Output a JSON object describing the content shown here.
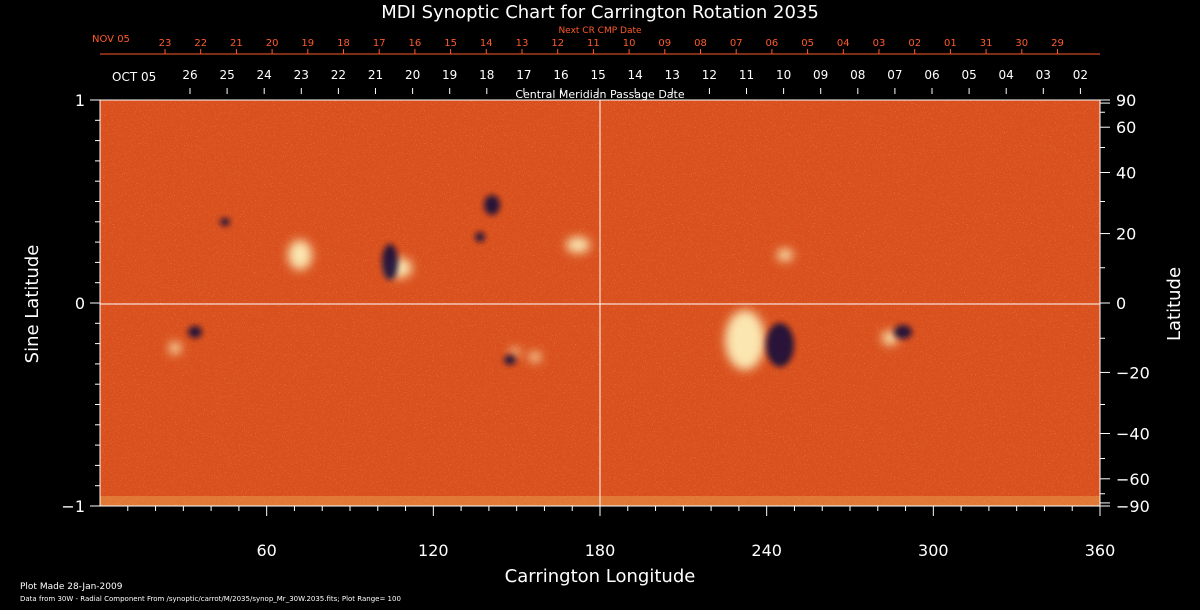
{
  "chart_data": {
    "type": "heatmap",
    "title": "MDI Synoptic Chart for Carrington Rotation 2035",
    "xlabel": "Carrington Longitude",
    "ylabel_left": "Sine Latitude",
    "ylabel_right": "Latitude",
    "xlim": [
      0,
      360
    ],
    "ylim": [
      -1,
      1
    ],
    "x_ticks": [
      "60",
      "120",
      "180",
      "240",
      "300",
      "360"
    ],
    "y_ticks_left": [
      "1",
      "0",
      "−1"
    ],
    "y_ticks_right": [
      "90",
      "60",
      "40",
      "20",
      "0",
      "−20",
      "−40",
      "−60",
      "−90"
    ],
    "top_axis_label": "Central Meridian Passage Date",
    "top_axis_month": "OCT 05",
    "top_axis_dates": [
      "26",
      "25",
      "24",
      "23",
      "22",
      "21",
      "20",
      "19",
      "18",
      "17",
      "16",
      "15",
      "14",
      "13",
      "12",
      "11",
      "10",
      "09",
      "08",
      "07",
      "06",
      "05",
      "04",
      "03",
      "02"
    ],
    "next_cr_label": "Next CR CMP Date",
    "next_cr_month": "NOV 05",
    "next_cr_dates": [
      "23",
      "22",
      "21",
      "20",
      "19",
      "18",
      "17",
      "16",
      "15",
      "14",
      "13",
      "12",
      "11",
      "10",
      "09",
      "08",
      "07",
      "06",
      "05",
      "04",
      "03",
      "02",
      "01",
      "31",
      "30",
      "29"
    ],
    "footer_plot_made": "Plot Made 28-Jan-2009",
    "footer_source": "Data from 30W - Radial Component From /synoptic/carrot/M/2035/synop_Mr_30W.2035.fits; Plot Range=  100",
    "plot_range": 100,
    "colors": {
      "background": "#d9501e",
      "positive": "#fff6c0",
      "negative": "#150a3a",
      "frame": "#ffffff",
      "accent_red": "#ff5a2a"
    }
  }
}
